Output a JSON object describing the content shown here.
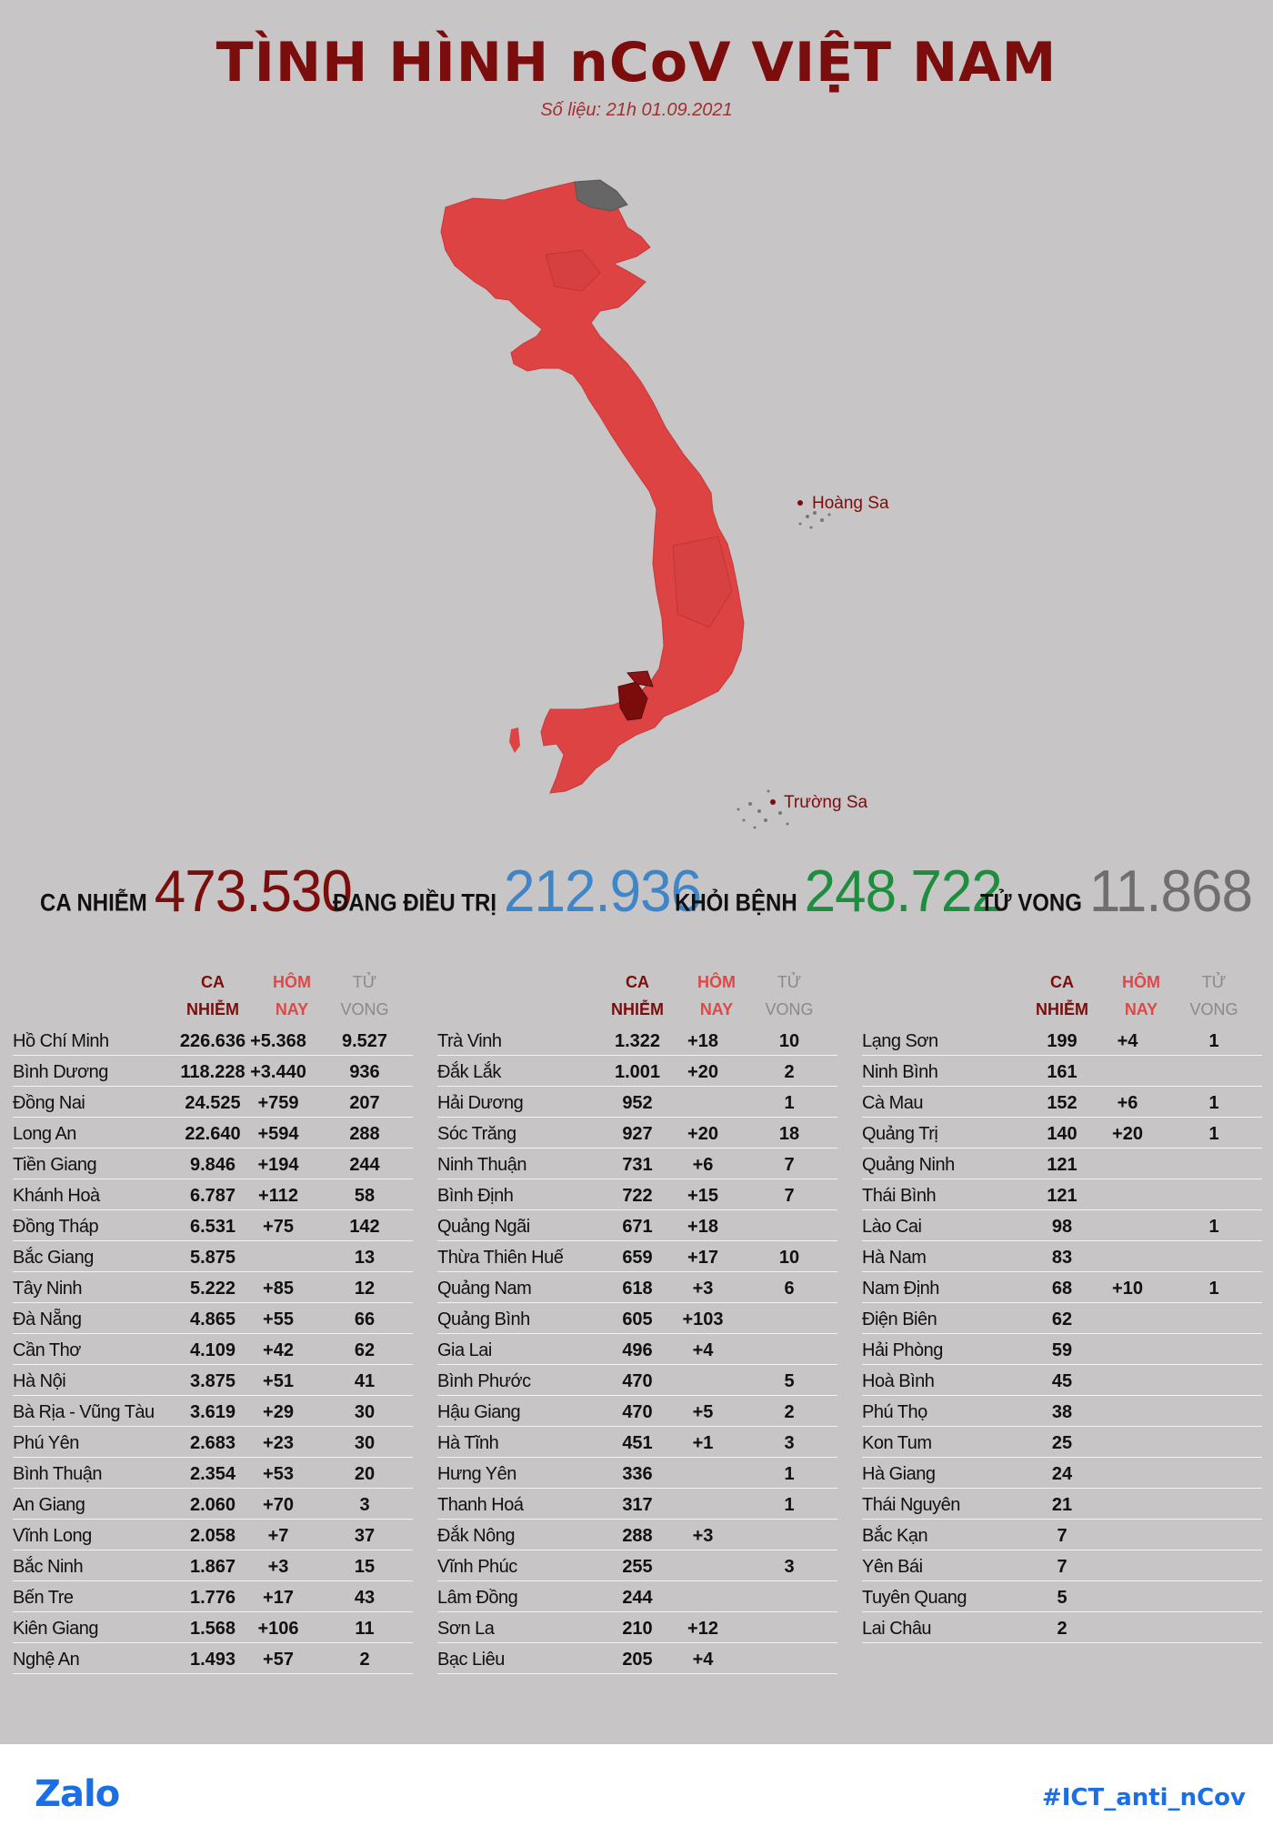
{
  "header": {
    "title": "TÌNH HÌNH nCoV VIỆT NAM",
    "subtitle": "Số liệu: 21h 01.09.2021"
  },
  "map": {
    "labels": {
      "hoang_sa": "Hoàng Sa",
      "truong_sa": "Trường Sa"
    },
    "colors": {
      "province": "#de4343",
      "hotspot": "#7a0c0c",
      "no_cases": "#666666",
      "islands": "#777777"
    }
  },
  "stats": {
    "infected": {
      "label": "CA NHIỄM",
      "value": "473.530",
      "color": "#7c0d0d"
    },
    "treating": {
      "label": "ĐANG ĐIỀU TRỊ",
      "value": "212.936",
      "color": "#3f86c9"
    },
    "recovered": {
      "label": "KHỎI BỆNH",
      "value": "248.722",
      "color": "#1e8e3e"
    },
    "deaths": {
      "label": "TỬ VONG",
      "value": "11.868",
      "color": "#6f6f6f"
    }
  },
  "table": {
    "headers": [
      "CA\nNHIỄM",
      "HÔM\nNAY",
      "TỬ\nVONG"
    ],
    "columns": [
      [
        [
          "Hồ Chí Minh",
          "226.636",
          "+5.368",
          "9.527"
        ],
        [
          "Bình Dương",
          "118.228",
          "+3.440",
          "936"
        ],
        [
          "Đồng Nai",
          "24.525",
          "+759",
          "207"
        ],
        [
          "Long An",
          "22.640",
          "+594",
          "288"
        ],
        [
          "Tiền Giang",
          "9.846",
          "+194",
          "244"
        ],
        [
          "Khánh Hoà",
          "6.787",
          "+112",
          "58"
        ],
        [
          "Đồng Tháp",
          "6.531",
          "+75",
          "142"
        ],
        [
          "Bắc Giang",
          "5.875",
          "",
          "13"
        ],
        [
          "Tây Ninh",
          "5.222",
          "+85",
          "12"
        ],
        [
          "Đà Nẵng",
          "4.865",
          "+55",
          "66"
        ],
        [
          "Cần Thơ",
          "4.109",
          "+42",
          "62"
        ],
        [
          "Hà Nội",
          "3.875",
          "+51",
          "41"
        ],
        [
          "Bà Rịa - Vũng Tàu",
          "3.619",
          "+29",
          "30"
        ],
        [
          "Phú Yên",
          "2.683",
          "+23",
          "30"
        ],
        [
          "Bình Thuận",
          "2.354",
          "+53",
          "20"
        ],
        [
          "An Giang",
          "2.060",
          "+70",
          "3"
        ],
        [
          "Vĩnh Long",
          "2.058",
          "+7",
          "37"
        ],
        [
          "Bắc Ninh",
          "1.867",
          "+3",
          "15"
        ],
        [
          "Bến Tre",
          "1.776",
          "+17",
          "43"
        ],
        [
          "Kiên Giang",
          "1.568",
          "+106",
          "11"
        ],
        [
          "Nghệ An",
          "1.493",
          "+57",
          "2"
        ]
      ],
      [
        [
          "Trà Vinh",
          "1.322",
          "+18",
          "10"
        ],
        [
          "Đắk Lắk",
          "1.001",
          "+20",
          "2"
        ],
        [
          "Hải Dương",
          "952",
          "",
          "1"
        ],
        [
          "Sóc Trăng",
          "927",
          "+20",
          "18"
        ],
        [
          "Ninh Thuận",
          "731",
          "+6",
          "7"
        ],
        [
          "Bình Định",
          "722",
          "+15",
          "7"
        ],
        [
          "Quảng Ngãi",
          "671",
          "+18",
          ""
        ],
        [
          "Thừa Thiên Huế",
          "659",
          "+17",
          "10"
        ],
        [
          "Quảng Nam",
          "618",
          "+3",
          "6"
        ],
        [
          "Quảng Bình",
          "605",
          "+103",
          ""
        ],
        [
          "Gia Lai",
          "496",
          "+4",
          ""
        ],
        [
          "Bình Phước",
          "470",
          "",
          "5"
        ],
        [
          "Hậu Giang",
          "470",
          "+5",
          "2"
        ],
        [
          "Hà Tĩnh",
          "451",
          "+1",
          "3"
        ],
        [
          "Hưng Yên",
          "336",
          "",
          "1"
        ],
        [
          "Thanh Hoá",
          "317",
          "",
          "1"
        ],
        [
          "Đắk Nông",
          "288",
          "+3",
          ""
        ],
        [
          "Vĩnh Phúc",
          "255",
          "",
          "3"
        ],
        [
          "Lâm Đồng",
          "244",
          "",
          ""
        ],
        [
          "Sơn La",
          "210",
          "+12",
          ""
        ],
        [
          "Bạc Liêu",
          "205",
          "+4",
          ""
        ]
      ],
      [
        [
          "Lạng Sơn",
          "199",
          "+4",
          "1"
        ],
        [
          "Ninh Bình",
          "161",
          "",
          ""
        ],
        [
          "Cà Mau",
          "152",
          "+6",
          "1"
        ],
        [
          "Quảng Trị",
          "140",
          "+20",
          "1"
        ],
        [
          "Quảng Ninh",
          "121",
          "",
          ""
        ],
        [
          "Thái Bình",
          "121",
          "",
          ""
        ],
        [
          "Lào Cai",
          "98",
          "",
          "1"
        ],
        [
          "Hà Nam",
          "83",
          "",
          ""
        ],
        [
          "Nam Định",
          "68",
          "+10",
          "1"
        ],
        [
          "Điện Biên",
          "62",
          "",
          ""
        ],
        [
          "Hải Phòng",
          "59",
          "",
          ""
        ],
        [
          "Hoà Bình",
          "45",
          "",
          ""
        ],
        [
          "Phú Thọ",
          "38",
          "",
          ""
        ],
        [
          "Kon Tum",
          "25",
          "",
          ""
        ],
        [
          "Hà Giang",
          "24",
          "",
          ""
        ],
        [
          "Thái Nguyên",
          "21",
          "",
          ""
        ],
        [
          "Bắc Kạn",
          "7",
          "",
          ""
        ],
        [
          "Yên Bái",
          "7",
          "",
          ""
        ],
        [
          "Tuyên Quang",
          "5",
          "",
          ""
        ],
        [
          "Lai Châu",
          "2",
          "",
          ""
        ]
      ]
    ]
  },
  "footer": {
    "brand": "Zalo",
    "hashtag": "#ICT_anti_nCov"
  }
}
